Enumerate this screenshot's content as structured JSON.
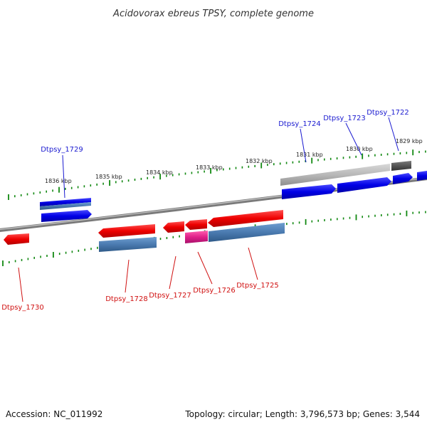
{
  "title": "Acidovorax ebreus TPSY, complete genome",
  "footer": {
    "accession": "Accession: NC_011992",
    "summary": "Topology: circular; Length: 3,796,573 bp; Genes: 3,544"
  },
  "scale_labels": [
    "1836 kbp",
    "1835 kbp",
    "1834 kbp",
    "1833 kbp",
    "1832 kbp",
    "1831 kbp",
    "1830 kbp",
    "1829 kbp"
  ],
  "genes_top": [
    "Dtpsy_1729",
    "Dtpsy_1724",
    "Dtpsy_1723",
    "Dtpsy_1722"
  ],
  "genes_bottom": [
    "Dtpsy_1730",
    "Dtpsy_1728",
    "Dtpsy_1727",
    "Dtpsy_1726",
    "Dtpsy_1725"
  ],
  "colors": {
    "forward_strand": "#0000ee",
    "reverse_strand": "#ee0000",
    "forward_label": "#1a1ad0",
    "reverse_label": "#d01010",
    "tick": "#118811",
    "backbone": "#8a8a8a",
    "steelblue_feature": "#4a7ab0",
    "magenta_feature": "#e0208a",
    "grey_feature": "#b8b8b8",
    "dark_feature": "#555555"
  }
}
